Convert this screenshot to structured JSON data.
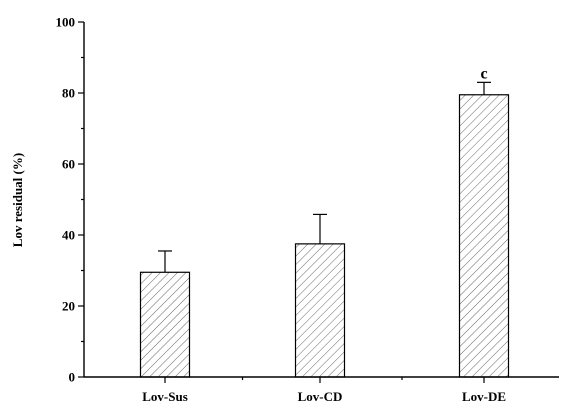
{
  "chart_data": {
    "type": "bar",
    "title": "",
    "xlabel": "",
    "ylabel": "Lov residual (%)",
    "categories": [
      "Lov-Sus",
      "Lov-CD",
      "Lov-DE"
    ],
    "values": [
      29.5,
      37.5,
      79.5
    ],
    "error_bars": [
      6.0,
      8.3,
      3.5
    ],
    "annotations": [
      "",
      "",
      "c"
    ],
    "ylim": [
      0,
      100
    ],
    "yticks": [
      0,
      20,
      40,
      60,
      80,
      100
    ],
    "ytick_labels": [
      "0",
      "20",
      "40",
      "60",
      "80",
      "100"
    ],
    "grid": false,
    "legend": "none",
    "bar_fill": "hatched",
    "colors": {
      "bar_stroke": "#000000",
      "hatch": "#555555",
      "axis": "#000000",
      "background": "#ffffff"
    }
  }
}
